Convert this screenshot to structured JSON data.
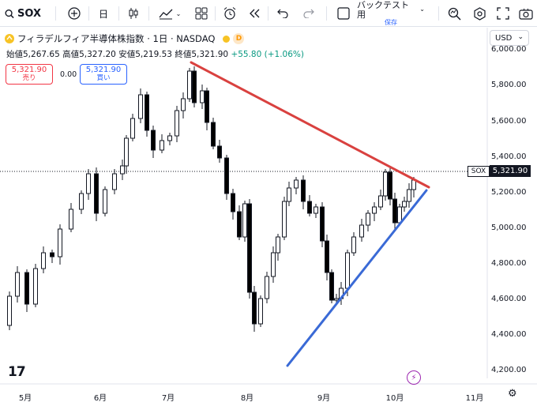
{
  "toolbar": {
    "symbol": "SOX",
    "interval": "日",
    "backtest_label": "バックテスト用",
    "backtest_sub": "保存"
  },
  "legend": {
    "title": "フィラデルフィア半導体株指数 · 1日 · NASDAQ",
    "badge": "D",
    "open_label": "始値",
    "open": "5,267.65",
    "high_label": "高値",
    "high": "5,327.20",
    "low_label": "安値",
    "low": "5,219.53",
    "close_label": "終値",
    "close": "5,321.90",
    "change": "+55.80 (+1.06%)"
  },
  "trade": {
    "sell_price": "5,321.90",
    "sell_label": "売り",
    "spread": "0.00",
    "buy_price": "5,321.90",
    "buy_label": "買い"
  },
  "currency": "USD",
  "price_axis": [
    "6,000.00",
    "5,800.00",
    "5,600.00",
    "5,400.00",
    "5,200.00",
    "5,000.00",
    "4,800.00",
    "4,600.00",
    "4,400.00",
    "4,200.00"
  ],
  "last_price": {
    "tag": "SOX",
    "value": "5,321.90"
  },
  "time_axis": [
    "5月",
    "6月",
    "7月",
    "8月",
    "9月",
    "10月",
    "11月"
  ],
  "colors": {
    "up": "#ffffff",
    "down": "#000000",
    "resistance_line": "#d9413f",
    "support_line": "#3a6ad6"
  },
  "icons": [
    "search-icon",
    "plus-circle-icon",
    "candles-icon",
    "indicators-icon",
    "layout-icon",
    "alarm-icon",
    "replay-icon",
    "undo-icon",
    "redo-icon",
    "checkbox-icon",
    "quick-search-icon",
    "settings-icon",
    "fullscreen-icon",
    "camera-icon"
  ]
}
